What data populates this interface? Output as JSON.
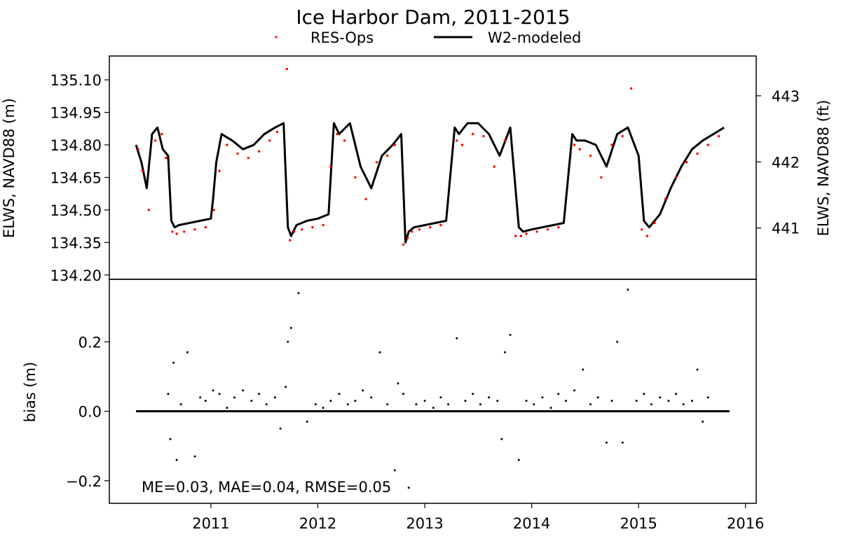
{
  "chart_data": {
    "type": "line",
    "title": "Ice Harbor Dam, 2011-2015",
    "legend": {
      "placement": "top-center",
      "entries": [
        {
          "label": "RES-Ops",
          "marker": "dot",
          "color": "#ff0000"
        },
        {
          "label": "W2-modeled",
          "marker": "line",
          "color": "#000000"
        }
      ]
    },
    "xlim": [
      2010.05,
      2016.1
    ],
    "xticks": [
      2011,
      2012,
      2013,
      2014,
      2015,
      2016
    ],
    "xticklabels": [
      "2011",
      "2012",
      "2013",
      "2014",
      "2015",
      "2016"
    ],
    "top_panel": {
      "ylabel": "ELWS, NAVD88 (m)",
      "ylabel_right": "ELWS, NAVD88 (ft)",
      "ylim": [
        134.18,
        135.21
      ],
      "yticks": [
        134.2,
        134.35,
        134.5,
        134.65,
        134.8,
        134.95,
        135.1
      ],
      "yticklabels": [
        "134.20",
        "134.35",
        "134.50",
        "134.65",
        "134.80",
        "134.95",
        "135.10"
      ],
      "right_yticks": [
        441,
        442,
        443
      ],
      "right_yticklabels": [
        "441",
        "442",
        "443"
      ],
      "series": [
        {
          "name": "W2-modeled",
          "color": "#000000",
          "style": "line",
          "x": [
            2010.3,
            2010.35,
            2010.4,
            2010.45,
            2010.5,
            2010.55,
            2010.6,
            2010.63,
            2010.66,
            2010.7,
            2010.8,
            2010.9,
            2011.0,
            2011.02,
            2011.05,
            2011.1,
            2011.2,
            2011.3,
            2011.4,
            2011.5,
            2011.6,
            2011.68,
            2011.72,
            2011.75,
            2011.8,
            2011.9,
            2012.0,
            2012.1,
            2012.15,
            2012.2,
            2012.3,
            2012.4,
            2012.5,
            2012.6,
            2012.7,
            2012.78,
            2012.82,
            2012.85,
            2012.9,
            2013.0,
            2013.1,
            2013.2,
            2013.28,
            2013.32,
            2013.4,
            2013.5,
            2013.6,
            2013.7,
            2013.8,
            2013.88,
            2013.92,
            2014.0,
            2014.1,
            2014.2,
            2014.3,
            2014.38,
            2014.42,
            2014.5,
            2014.6,
            2014.7,
            2014.8,
            2014.9,
            2015.0,
            2015.05,
            2015.1,
            2015.2,
            2015.3,
            2015.4,
            2015.5,
            2015.6,
            2015.7,
            2015.8
          ],
          "y": [
            134.8,
            134.72,
            134.6,
            134.85,
            134.88,
            134.78,
            134.75,
            134.45,
            134.42,
            134.43,
            134.44,
            134.45,
            134.46,
            134.55,
            134.72,
            134.85,
            134.82,
            134.78,
            134.8,
            134.85,
            134.88,
            134.9,
            134.42,
            134.38,
            134.43,
            134.45,
            134.46,
            134.48,
            134.9,
            134.85,
            134.9,
            134.7,
            134.6,
            134.75,
            134.8,
            134.85,
            134.35,
            134.4,
            134.42,
            134.43,
            134.44,
            134.45,
            134.88,
            134.85,
            134.9,
            134.9,
            134.85,
            134.75,
            134.88,
            134.42,
            134.4,
            134.41,
            134.42,
            134.43,
            134.44,
            134.85,
            134.82,
            134.82,
            134.8,
            134.7,
            134.85,
            134.88,
            134.75,
            134.45,
            134.42,
            134.48,
            134.6,
            134.7,
            134.78,
            134.82,
            134.85,
            134.88
          ]
        },
        {
          "name": "RES-Ops",
          "color": "#ff0000",
          "style": "dots",
          "x": [
            2010.32,
            2010.36,
            2010.42,
            2010.48,
            2010.54,
            2010.58,
            2010.64,
            2010.68,
            2010.75,
            2010.85,
            2010.95,
            2011.03,
            2011.08,
            2011.15,
            2011.25,
            2011.35,
            2011.45,
            2011.55,
            2011.62,
            2011.71,
            2011.74,
            2011.78,
            2011.85,
            2011.95,
            2012.05,
            2012.12,
            2012.18,
            2012.25,
            2012.35,
            2012.45,
            2012.55,
            2012.65,
            2012.72,
            2012.8,
            2012.84,
            2012.88,
            2012.95,
            2013.05,
            2013.15,
            2013.3,
            2013.35,
            2013.45,
            2013.55,
            2013.65,
            2013.75,
            2013.85,
            2013.9,
            2013.95,
            2014.05,
            2014.15,
            2014.25,
            2014.4,
            2014.45,
            2014.55,
            2014.65,
            2014.75,
            2014.85,
            2014.93,
            2015.03,
            2015.08,
            2015.15,
            2015.25,
            2015.35,
            2015.45,
            2015.55,
            2015.65,
            2015.75
          ],
          "y": [
            134.78,
            134.68,
            134.5,
            134.82,
            134.85,
            134.74,
            134.4,
            134.39,
            134.4,
            134.41,
            134.42,
            134.5,
            134.68,
            134.8,
            134.76,
            134.74,
            134.77,
            134.82,
            134.86,
            135.15,
            134.36,
            134.4,
            134.41,
            134.42,
            134.43,
            134.7,
            134.85,
            134.82,
            134.65,
            134.55,
            134.72,
            134.75,
            134.8,
            134.34,
            134.37,
            134.4,
            134.41,
            134.42,
            134.43,
            134.82,
            134.8,
            134.85,
            134.84,
            134.7,
            134.82,
            134.38,
            134.38,
            134.39,
            134.4,
            134.41,
            134.42,
            134.8,
            134.78,
            134.75,
            134.65,
            134.8,
            134.84,
            135.06,
            134.41,
            134.38,
            134.44,
            134.55,
            134.65,
            134.72,
            134.76,
            134.8,
            134.84
          ]
        }
      ]
    },
    "bottom_panel": {
      "ylabel": "bias (m)",
      "ylim": [
        -0.265,
        0.38
      ],
      "yticks": [
        -0.2,
        0.0,
        0.2
      ],
      "yticklabels": [
        "−0.2",
        "0.0",
        "0.2"
      ],
      "zero_line": {
        "x": [
          2010.3,
          2015.85
        ],
        "y": 0.0
      },
      "annotation": "ME=0.03, MAE=0.04, RMSE=0.05",
      "series": [
        {
          "name": "bias",
          "color": "#000000",
          "style": "dots",
          "x": [
            2010.6,
            2010.62,
            2010.65,
            2010.68,
            2010.72,
            2010.78,
            2010.85,
            2010.9,
            2010.95,
            2011.02,
            2011.08,
            2011.15,
            2011.22,
            2011.3,
            2011.38,
            2011.45,
            2011.52,
            2011.6,
            2011.65,
            2011.7,
            2011.72,
            2011.75,
            2011.82,
            2011.9,
            2011.98,
            2012.05,
            2012.12,
            2012.2,
            2012.28,
            2012.35,
            2012.42,
            2012.5,
            2012.58,
            2012.65,
            2012.72,
            2012.75,
            2012.8,
            2012.85,
            2012.92,
            2013.0,
            2013.08,
            2013.15,
            2013.22,
            2013.3,
            2013.38,
            2013.45,
            2013.52,
            2013.6,
            2013.68,
            2013.72,
            2013.75,
            2013.8,
            2013.88,
            2013.95,
            2014.02,
            2014.1,
            2014.18,
            2014.25,
            2014.32,
            2014.4,
            2014.48,
            2014.55,
            2014.62,
            2014.7,
            2014.75,
            2014.8,
            2014.85,
            2014.9,
            2014.98,
            2015.05,
            2015.12,
            2015.2,
            2015.28,
            2015.35,
            2015.42,
            2015.5,
            2015.55,
            2015.6,
            2015.65
          ],
          "y": [
            0.05,
            -0.08,
            0.14,
            -0.14,
            0.02,
            0.17,
            -0.13,
            0.04,
            0.03,
            0.06,
            0.05,
            0.01,
            0.04,
            0.06,
            0.03,
            0.05,
            0.02,
            0.04,
            -0.05,
            0.07,
            0.2,
            0.24,
            0.34,
            -0.03,
            0.02,
            0.01,
            0.03,
            0.05,
            0.02,
            0.03,
            0.06,
            0.04,
            0.17,
            0.02,
            -0.17,
            0.08,
            0.05,
            -0.22,
            0.02,
            0.03,
            0.01,
            0.04,
            0.02,
            0.21,
            0.03,
            0.05,
            0.02,
            0.04,
            0.03,
            -0.08,
            0.17,
            0.22,
            -0.14,
            0.03,
            0.02,
            0.04,
            0.01,
            0.05,
            0.03,
            0.06,
            0.12,
            0.02,
            0.04,
            -0.09,
            0.03,
            0.2,
            -0.09,
            0.35,
            0.03,
            0.05,
            0.02,
            0.04,
            0.03,
            0.05,
            0.02,
            0.03,
            0.12,
            -0.03,
            0.04
          ]
        }
      ]
    }
  }
}
